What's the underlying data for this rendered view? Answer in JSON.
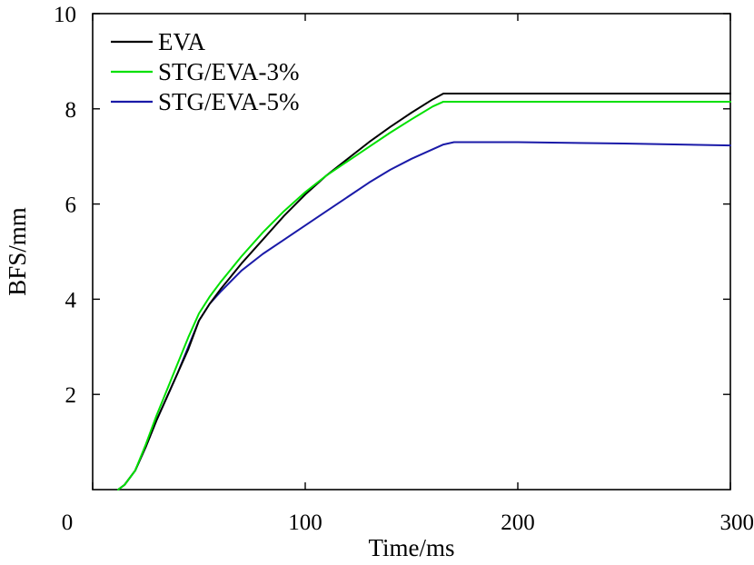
{
  "chart_data": {
    "type": "line",
    "title": "",
    "xlabel": "Time/ms",
    "ylabel": "BFS/mm",
    "xlim": [
      0,
      300
    ],
    "ylim": [
      0,
      10
    ],
    "xticks": [
      0,
      100,
      200,
      300
    ],
    "xtick_labels": [
      "0",
      "100",
      "200",
      "300"
    ],
    "yticks": [
      2,
      4,
      6,
      8,
      10
    ],
    "ytick_labels": [
      "2",
      "4",
      "6",
      "8",
      "10"
    ],
    "grid": false,
    "legend_position": "top-left",
    "series": [
      {
        "name": "EVA",
        "color": "#000000",
        "x": [
          12,
          15,
          20,
          25,
          30,
          35,
          40,
          45,
          50,
          55,
          60,
          70,
          80,
          90,
          100,
          110,
          120,
          130,
          140,
          150,
          160,
          165,
          170,
          200,
          250,
          300
        ],
        "y": [
          0,
          0.1,
          0.4,
          0.9,
          1.45,
          1.95,
          2.45,
          2.95,
          3.55,
          3.9,
          4.2,
          4.75,
          5.25,
          5.75,
          6.2,
          6.6,
          6.95,
          7.3,
          7.62,
          7.92,
          8.2,
          8.32,
          8.32,
          8.32,
          8.32,
          8.32
        ]
      },
      {
        "name": "STG/EVA-3%",
        "color": "#00e000",
        "x": [
          12,
          15,
          20,
          25,
          30,
          35,
          40,
          45,
          50,
          55,
          60,
          70,
          80,
          90,
          100,
          110,
          120,
          130,
          140,
          150,
          160,
          165,
          170,
          200,
          250,
          300
        ],
        "y": [
          0,
          0.1,
          0.4,
          0.95,
          1.55,
          2.1,
          2.65,
          3.2,
          3.7,
          4.05,
          4.35,
          4.9,
          5.4,
          5.85,
          6.25,
          6.6,
          6.9,
          7.2,
          7.5,
          7.78,
          8.05,
          8.15,
          8.15,
          8.15,
          8.15,
          8.15
        ]
      },
      {
        "name": "STG/EVA-5%",
        "color": "#1a1aa8",
        "x": [
          12,
          15,
          20,
          25,
          30,
          35,
          40,
          45,
          50,
          55,
          60,
          70,
          80,
          90,
          100,
          110,
          120,
          130,
          140,
          150,
          160,
          165,
          170,
          200,
          250,
          300
        ],
        "y": [
          0,
          0.1,
          0.4,
          0.9,
          1.45,
          1.95,
          2.45,
          3.0,
          3.55,
          3.9,
          4.15,
          4.6,
          4.95,
          5.25,
          5.55,
          5.85,
          6.15,
          6.45,
          6.72,
          6.95,
          7.15,
          7.25,
          7.3,
          7.3,
          7.27,
          7.23
        ]
      }
    ]
  }
}
